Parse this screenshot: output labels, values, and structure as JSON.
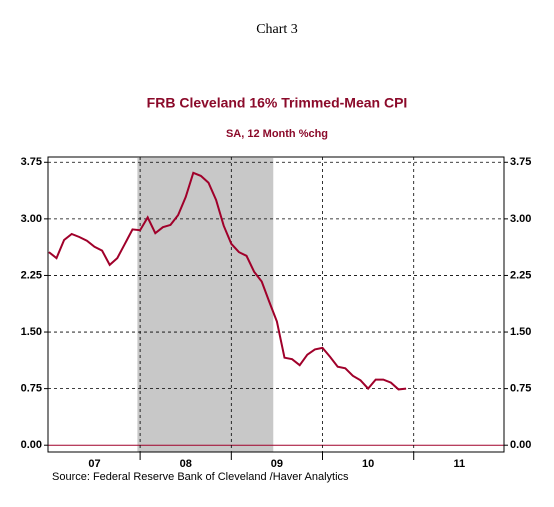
{
  "page_title": "Chart 3",
  "chart_data": {
    "type": "line",
    "title": "FRB Cleveland 16% Trimmed-Mean CPI",
    "subtitle": "SA, 12 Month %chg",
    "source": "Source:  Federal Reserve Bank of Cleveland /Haver Analytics",
    "x": [
      2007.0,
      2007.083,
      2007.167,
      2007.25,
      2007.333,
      2007.417,
      2007.5,
      2007.583,
      2007.667,
      2007.75,
      2007.833,
      2007.917,
      2008.0,
      2008.083,
      2008.167,
      2008.25,
      2008.333,
      2008.417,
      2008.5,
      2008.583,
      2008.667,
      2008.75,
      2008.833,
      2008.917,
      2009.0,
      2009.083,
      2009.167,
      2009.25,
      2009.333,
      2009.417,
      2009.5,
      2009.583,
      2009.667,
      2009.75,
      2009.833,
      2009.917,
      2010.0,
      2010.083,
      2010.167,
      2010.25,
      2010.333,
      2010.417,
      2010.5,
      2010.583,
      2010.667,
      2010.75,
      2010.833,
      2010.917
    ],
    "series": [
      {
        "name": "FRB Cleveland 16% Trimmed-Mean CPI",
        "color": "#a0002a",
        "values": [
          2.56,
          2.48,
          2.72,
          2.8,
          2.76,
          2.71,
          2.63,
          2.58,
          2.39,
          2.48,
          2.67,
          2.86,
          2.85,
          3.02,
          2.81,
          2.89,
          2.92,
          3.05,
          3.29,
          3.61,
          3.57,
          3.48,
          3.25,
          2.91,
          2.67,
          2.56,
          2.51,
          2.3,
          2.17,
          1.9,
          1.64,
          1.16,
          1.14,
          1.06,
          1.2,
          1.27,
          1.29,
          1.17,
          1.04,
          1.02,
          0.92,
          0.86,
          0.75,
          0.87,
          0.87,
          0.83,
          0.74,
          0.75
        ]
      }
    ],
    "shading": [
      2007.97,
      2009.46
    ],
    "shading_color": "#c8c8c8",
    "xlim": [
      2006.99,
      2011.99
    ],
    "xticks": [
      {
        "value": 2007.5,
        "label": "07"
      },
      {
        "value": 2008.5,
        "label": "08"
      },
      {
        "value": 2009.5,
        "label": "09"
      },
      {
        "value": 2010.5,
        "label": "10"
      },
      {
        "value": 2011.5,
        "label": "11"
      }
    ],
    "xgrid": [
      2008,
      2009,
      2010,
      2011
    ],
    "ylim": [
      -0.09,
      3.82
    ],
    "yticks": [
      3.75,
      {
        "value": 3,
        "label": "3.00"
      },
      2.25,
      {
        "value": 1.5,
        "label": "1.50"
      },
      0.75,
      {
        "value": 0,
        "label": "0.00"
      }
    ],
    "y2lim": [
      -0.09,
      3.82
    ],
    "y2ticks": [
      3.75,
      {
        "value": 3,
        "label": "3.00"
      },
      2.25,
      {
        "value": 1.5,
        "label": "1.50"
      },
      0.75,
      {
        "value": 0,
        "label": "0.00"
      }
    ],
    "grid": true,
    "zero_line_color": "#a0002a"
  }
}
